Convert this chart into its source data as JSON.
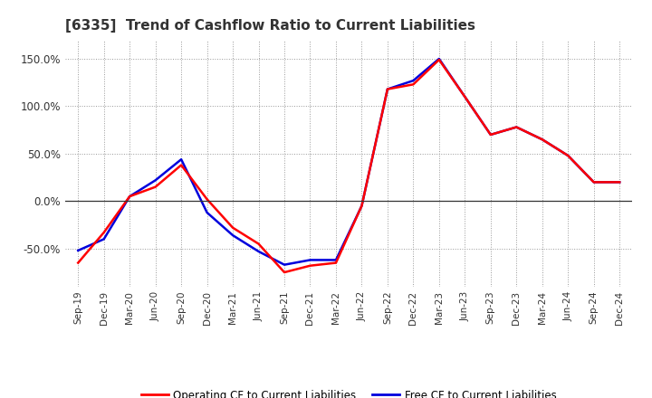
{
  "title": "[6335]  Trend of Cashflow Ratio to Current Liabilities",
  "x_labels": [
    "Sep-19",
    "Dec-19",
    "Mar-20",
    "Jun-20",
    "Sep-20",
    "Dec-20",
    "Mar-21",
    "Jun-21",
    "Sep-21",
    "Dec-21",
    "Mar-22",
    "Jun-22",
    "Sep-22",
    "Dec-22",
    "Mar-23",
    "Jun-23",
    "Sep-23",
    "Dec-23",
    "Mar-24",
    "Jun-24",
    "Sep-24",
    "Dec-24"
  ],
  "operating_cf": [
    -65,
    -33,
    5,
    15,
    38,
    2,
    -28,
    -45,
    -75,
    -68,
    -65,
    -5,
    118,
    123,
    149,
    110,
    70,
    78,
    65,
    48,
    20,
    20
  ],
  "free_cf": [
    -52,
    -40,
    5,
    22,
    44,
    -12,
    -36,
    -53,
    -67,
    -62,
    -62,
    -5,
    118,
    127,
    150,
    110,
    70,
    78,
    65,
    48,
    20,
    20
  ],
  "operating_color": "#ff0000",
  "free_color": "#0000dd",
  "ylim": [
    -90,
    170
  ],
  "yticks": [
    -50,
    0,
    50,
    100,
    150
  ],
  "ytick_labels": [
    "-50.0%",
    "0.0%",
    "50.0%",
    "100.0%",
    "150.0%"
  ],
  "background_color": "#ffffff",
  "plot_bg_color": "#ffffff",
  "grid_color": "#999999",
  "legend_op": "Operating CF to Current Liabilities",
  "legend_free": "Free CF to Current Liabilities"
}
